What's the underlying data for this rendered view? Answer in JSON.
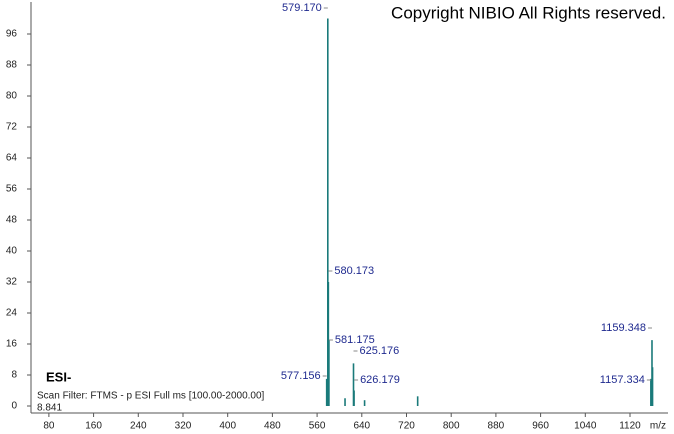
{
  "chart_data": {
    "type": "bar",
    "title": "Copyright NIBIO All Rights reserved.",
    "ion_mode": "ESI-",
    "scan_filter": "Scan Filter: FTMS - p ESI Full ms [100.00-2000.00]",
    "intensity_label": "8.841",
    "x_label": "m/z",
    "x": [
      577.156,
      579.17,
      580.173,
      581.175,
      625.176,
      626.179,
      1157.334,
      1159.348,
      1160.35,
      578.2,
      610,
      645,
      740,
      1158.3
    ],
    "x_labels": [
      "577.156",
      "579.170",
      "580.173",
      "581.175",
      "625.176",
      "626.179",
      "1157.334",
      "1159.348",
      null,
      null,
      null,
      null,
      null,
      null
    ],
    "values": [
      7,
      100,
      32,
      17,
      11,
      4,
      7,
      17,
      10,
      5,
      2,
      1.5,
      2.5,
      6
    ],
    "color": "#1a7a7a",
    "label_color": "#1f2a8f",
    "xlim": [
      48,
      1188
    ],
    "xticks": [
      80,
      160,
      240,
      320,
      400,
      480,
      560,
      640,
      720,
      800,
      880,
      960,
      1040,
      1120
    ],
    "ylim": [
      0,
      104
    ],
    "yticks": [
      0,
      8,
      16,
      24,
      32,
      40,
      48,
      56,
      64,
      72,
      80,
      88,
      96
    ]
  }
}
